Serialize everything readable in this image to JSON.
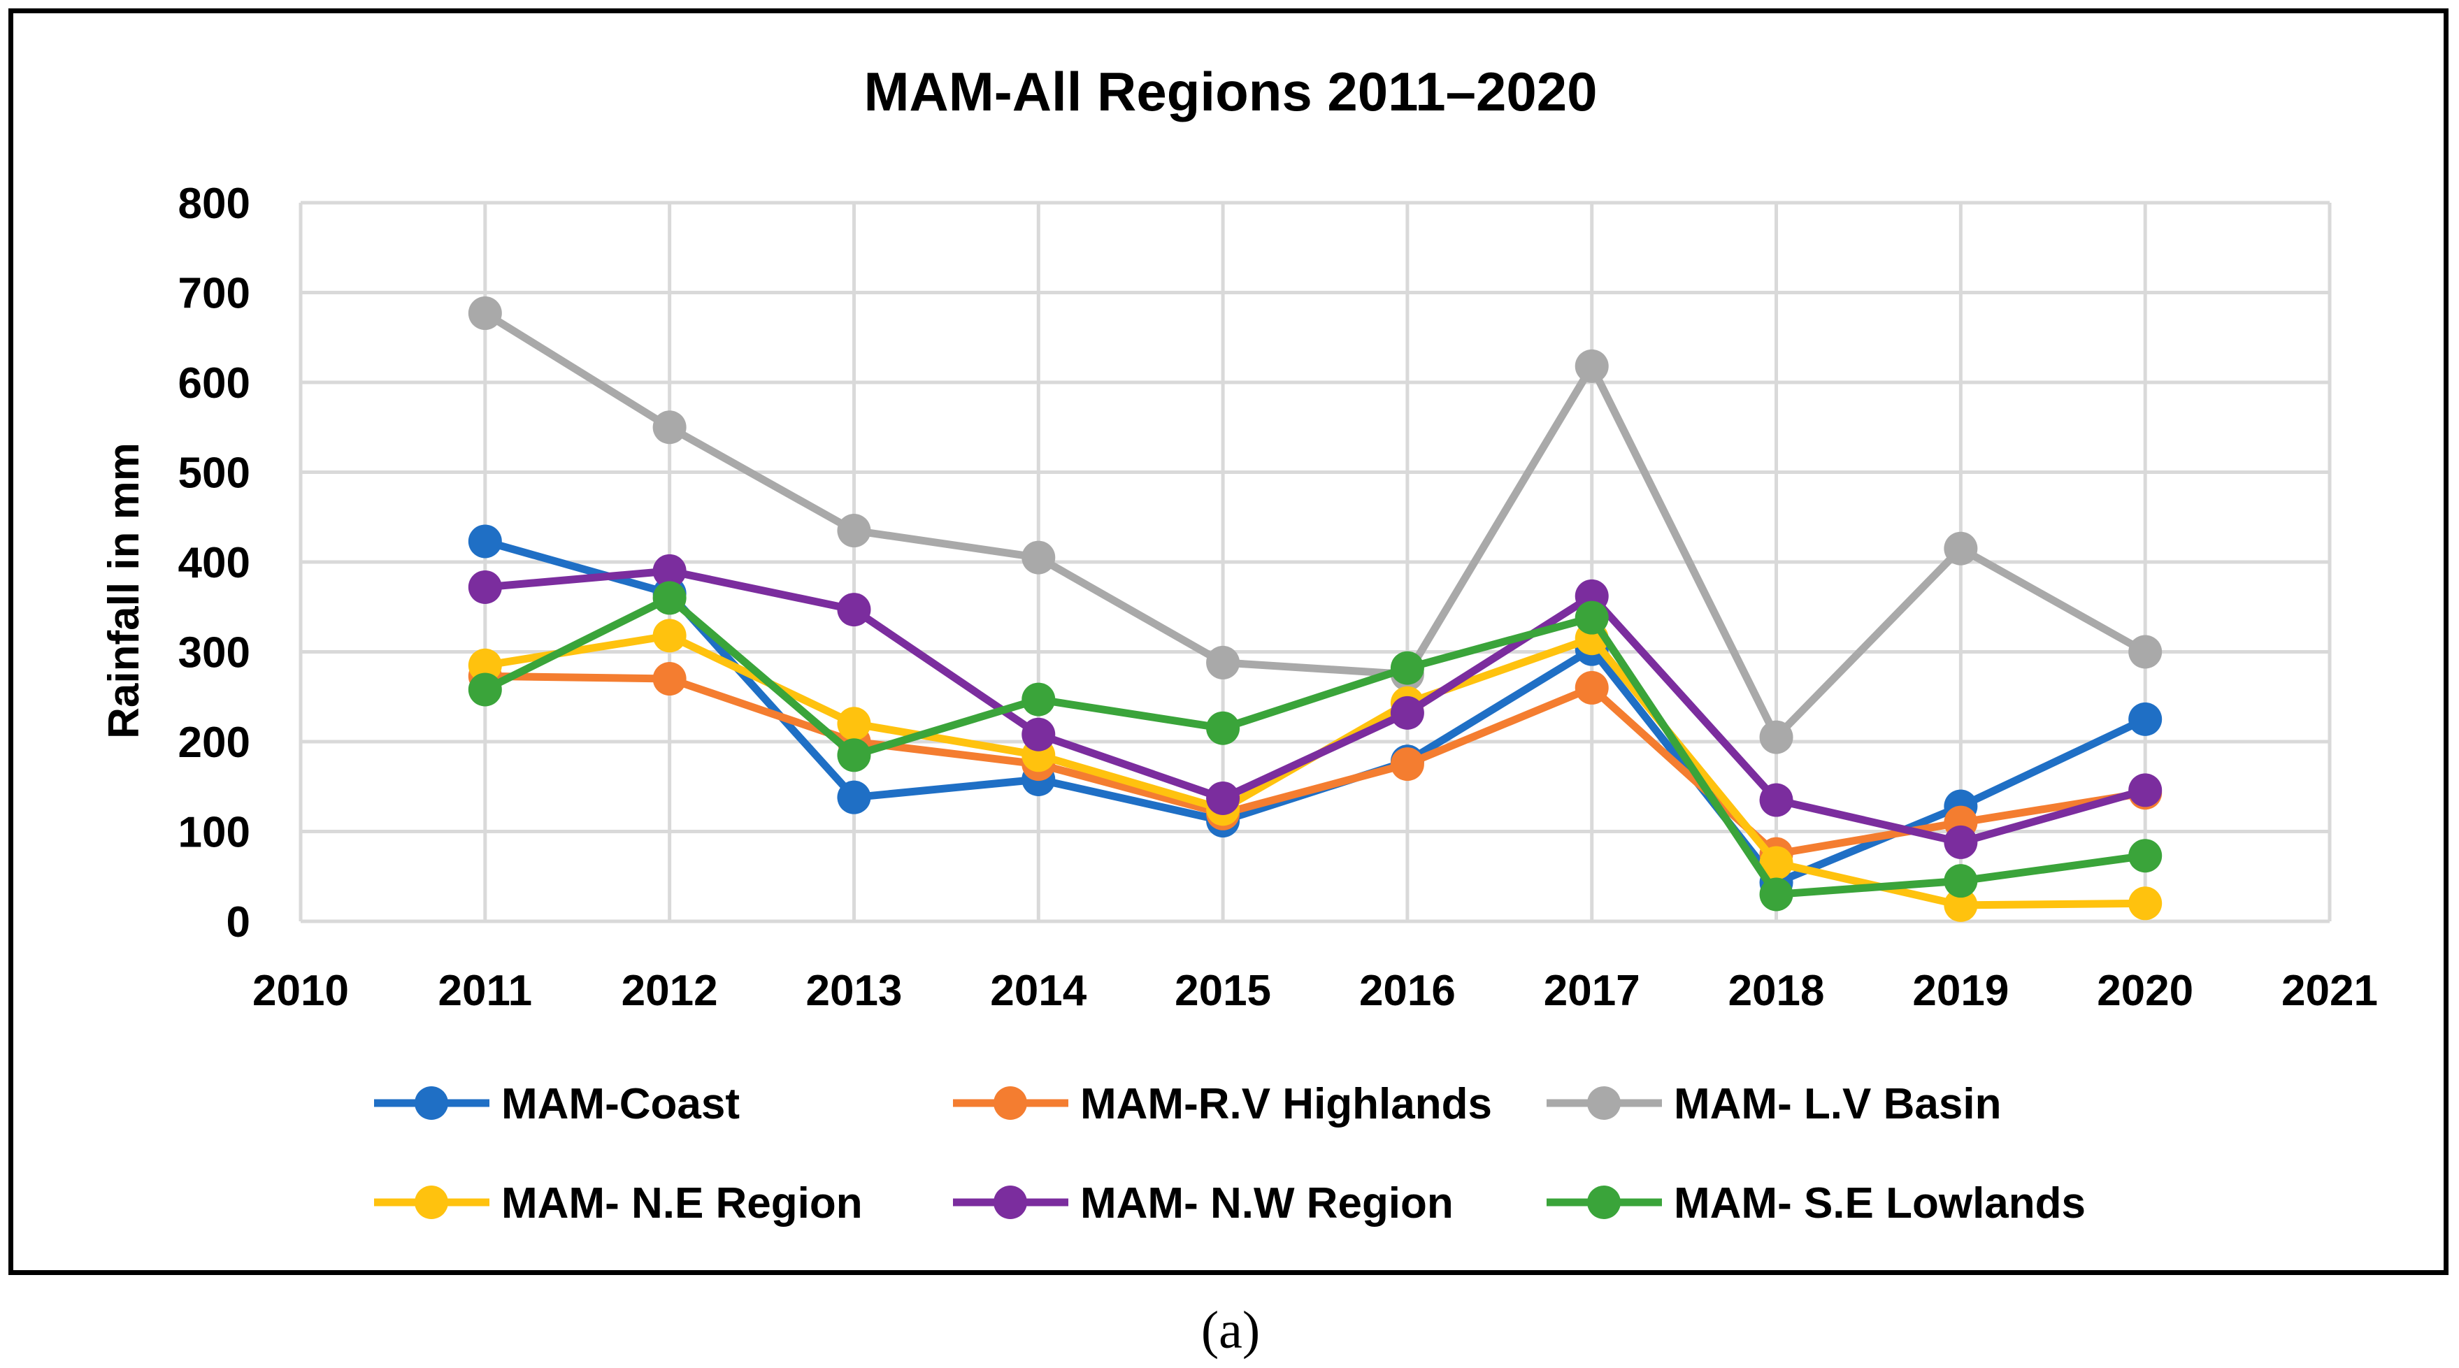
{
  "chart_data": {
    "type": "line",
    "title": "MAM-All Regions 2011–2020",
    "xlabel": "",
    "ylabel": "Rainfall in mm",
    "xlim": [
      2010,
      2021
    ],
    "ylim": [
      0,
      800
    ],
    "x_ticks": [
      2010,
      2011,
      2012,
      2013,
      2014,
      2015,
      2016,
      2017,
      2018,
      2019,
      2020,
      2021
    ],
    "y_ticks": [
      0,
      100,
      200,
      300,
      400,
      500,
      600,
      700,
      800
    ],
    "grid": true,
    "legend_position": "bottom",
    "x": [
      2011,
      2012,
      2013,
      2014,
      2015,
      2016,
      2017,
      2018,
      2019,
      2020
    ],
    "series": [
      {
        "name": "MAM-Coast",
        "color": "#1F6FC5",
        "values": [
          423,
          365,
          138,
          158,
          112,
          178,
          303,
          43,
          128,
          225
        ]
      },
      {
        "name": "MAM-R.V Highlands",
        "color": "#F47D30",
        "values": [
          273,
          270,
          200,
          175,
          120,
          175,
          260,
          75,
          110,
          143
        ]
      },
      {
        "name": "MAM- L.V Basin",
        "color": "#A9A9A9",
        "values": [
          677,
          550,
          435,
          405,
          288,
          275,
          618,
          205,
          415,
          300
        ]
      },
      {
        "name": "MAM- N.E Region",
        "color": "#FFC20E",
        "values": [
          285,
          318,
          220,
          185,
          125,
          243,
          315,
          65,
          18,
          20
        ]
      },
      {
        "name": "MAM- N.W Region",
        "color": "#7B2D9E",
        "values": [
          372,
          390,
          347,
          208,
          137,
          232,
          362,
          135,
          88,
          146
        ]
      },
      {
        "name": "MAM- S.E Lowlands",
        "color": "#3AA43A",
        "values": [
          258,
          360,
          185,
          247,
          215,
          282,
          338,
          30,
          45,
          73
        ]
      }
    ]
  },
  "caption": "(a)"
}
